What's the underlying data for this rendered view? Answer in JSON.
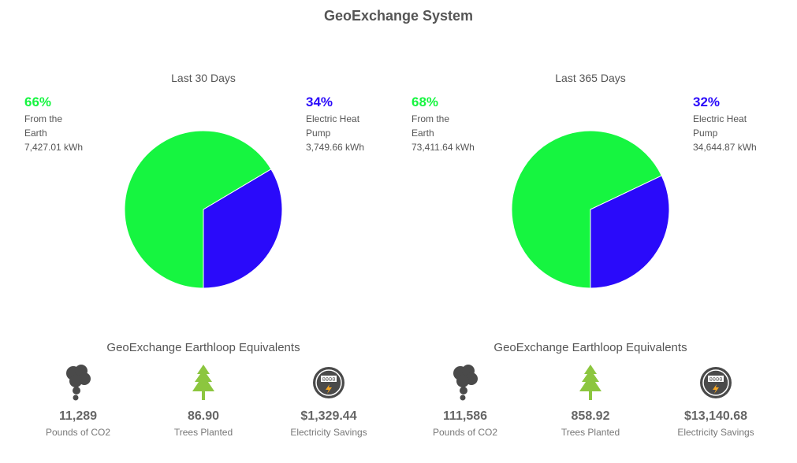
{
  "page": {
    "title": "GeoExchange System"
  },
  "colors": {
    "earth": "#16f540",
    "pump": "#2a0afa",
    "icon_dark": "#4a4a4a",
    "tree": "#8cc63f"
  },
  "chart_data": [
    {
      "type": "pie",
      "title": "Last 30 Days",
      "slices": [
        {
          "name": "From the Earth",
          "percent": "66%",
          "value": 7427.01,
          "value_label": "7,427.01 kWh",
          "color": "#16f540"
        },
        {
          "name": "Electric Heat Pump",
          "percent": "34%",
          "value": 3749.66,
          "value_label": "3,749.66 kWh",
          "color": "#2a0afa"
        }
      ]
    },
    {
      "type": "pie",
      "title": "Last 365 Days",
      "slices": [
        {
          "name": "From the Earth",
          "percent": "68%",
          "value": 73411.64,
          "value_label": "73,411.64 kWh",
          "color": "#16f540"
        },
        {
          "name": "Electric Heat Pump",
          "percent": "32%",
          "value": 34644.87,
          "value_label": "34,644.87 kWh",
          "color": "#2a0afa"
        }
      ]
    }
  ],
  "equivalents": [
    {
      "title": "GeoExchange Earthloop Equivalents",
      "metrics": [
        {
          "icon": "smoke-cloud-icon",
          "value": "11,289",
          "label": "Pounds of CO2"
        },
        {
          "icon": "tree-icon",
          "value": "86.90",
          "label": "Trees Planted"
        },
        {
          "icon": "electric-meter-icon",
          "value": "$1,329.44",
          "label": "Electricity Savings"
        }
      ]
    },
    {
      "title": "GeoExchange Earthloop Equivalents",
      "metrics": [
        {
          "icon": "smoke-cloud-icon",
          "value": "111,586",
          "label": "Pounds of CO2"
        },
        {
          "icon": "tree-icon",
          "value": "858.92",
          "label": "Trees Planted"
        },
        {
          "icon": "electric-meter-icon",
          "value": "$13,140.68",
          "label": "Electricity Savings"
        }
      ]
    }
  ]
}
